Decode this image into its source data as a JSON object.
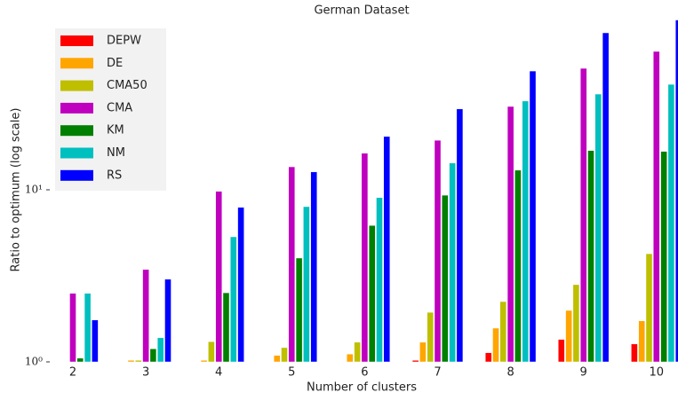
{
  "chart_data": {
    "type": "bar",
    "title": "German Dataset",
    "x_label": "Number of clusters",
    "y_label": "Ratio to optimum (log scale)",
    "log_scale": true,
    "legend": "upper left",
    "categories": [
      "2",
      "3",
      "4",
      "5",
      "6",
      "7",
      "8",
      "9",
      "10"
    ],
    "ylim": [
      1,
      100
    ],
    "yticks": [
      {
        "value": 1,
        "label": "10⁰"
      },
      {
        "value": 10,
        "label": "10¹"
      }
    ],
    "series": [
      {
        "name": "DEPW",
        "color": "#ff0000",
        "values": [
          1.0,
          1.0,
          1.0,
          1.0,
          1.0,
          1.02,
          1.13,
          1.35,
          1.27
        ]
      },
      {
        "name": "DE",
        "color": "#ffa500",
        "values": [
          1.0,
          1.02,
          1.02,
          1.09,
          1.11,
          1.3,
          1.57,
          1.99,
          1.73
        ]
      },
      {
        "name": "CMA50",
        "color": "#bfbf00",
        "values": [
          1.0,
          1.02,
          1.31,
          1.21,
          1.3,
          1.94,
          2.24,
          2.81,
          4.25
        ]
      },
      {
        "name": "CMA",
        "color": "#bf00bf",
        "values": [
          2.5,
          3.44,
          9.8,
          13.6,
          16.3,
          19.4,
          30.5,
          50.8,
          63.7
        ]
      },
      {
        "name": "KM",
        "color": "#008000",
        "values": [
          1.05,
          1.19,
          2.52,
          4.01,
          6.2,
          9.3,
          13.0,
          16.9,
          16.7
        ]
      },
      {
        "name": "NM",
        "color": "#00bfbf",
        "values": [
          2.5,
          1.38,
          5.33,
          7.98,
          9.0,
          14.3,
          32.8,
          36,
          41
        ]
      },
      {
        "name": "RS",
        "color": "#0000ff",
        "values": [
          1.75,
          3.02,
          7.9,
          12.7,
          20.4,
          29.5,
          49,
          81.7,
          97
        ]
      }
    ]
  }
}
